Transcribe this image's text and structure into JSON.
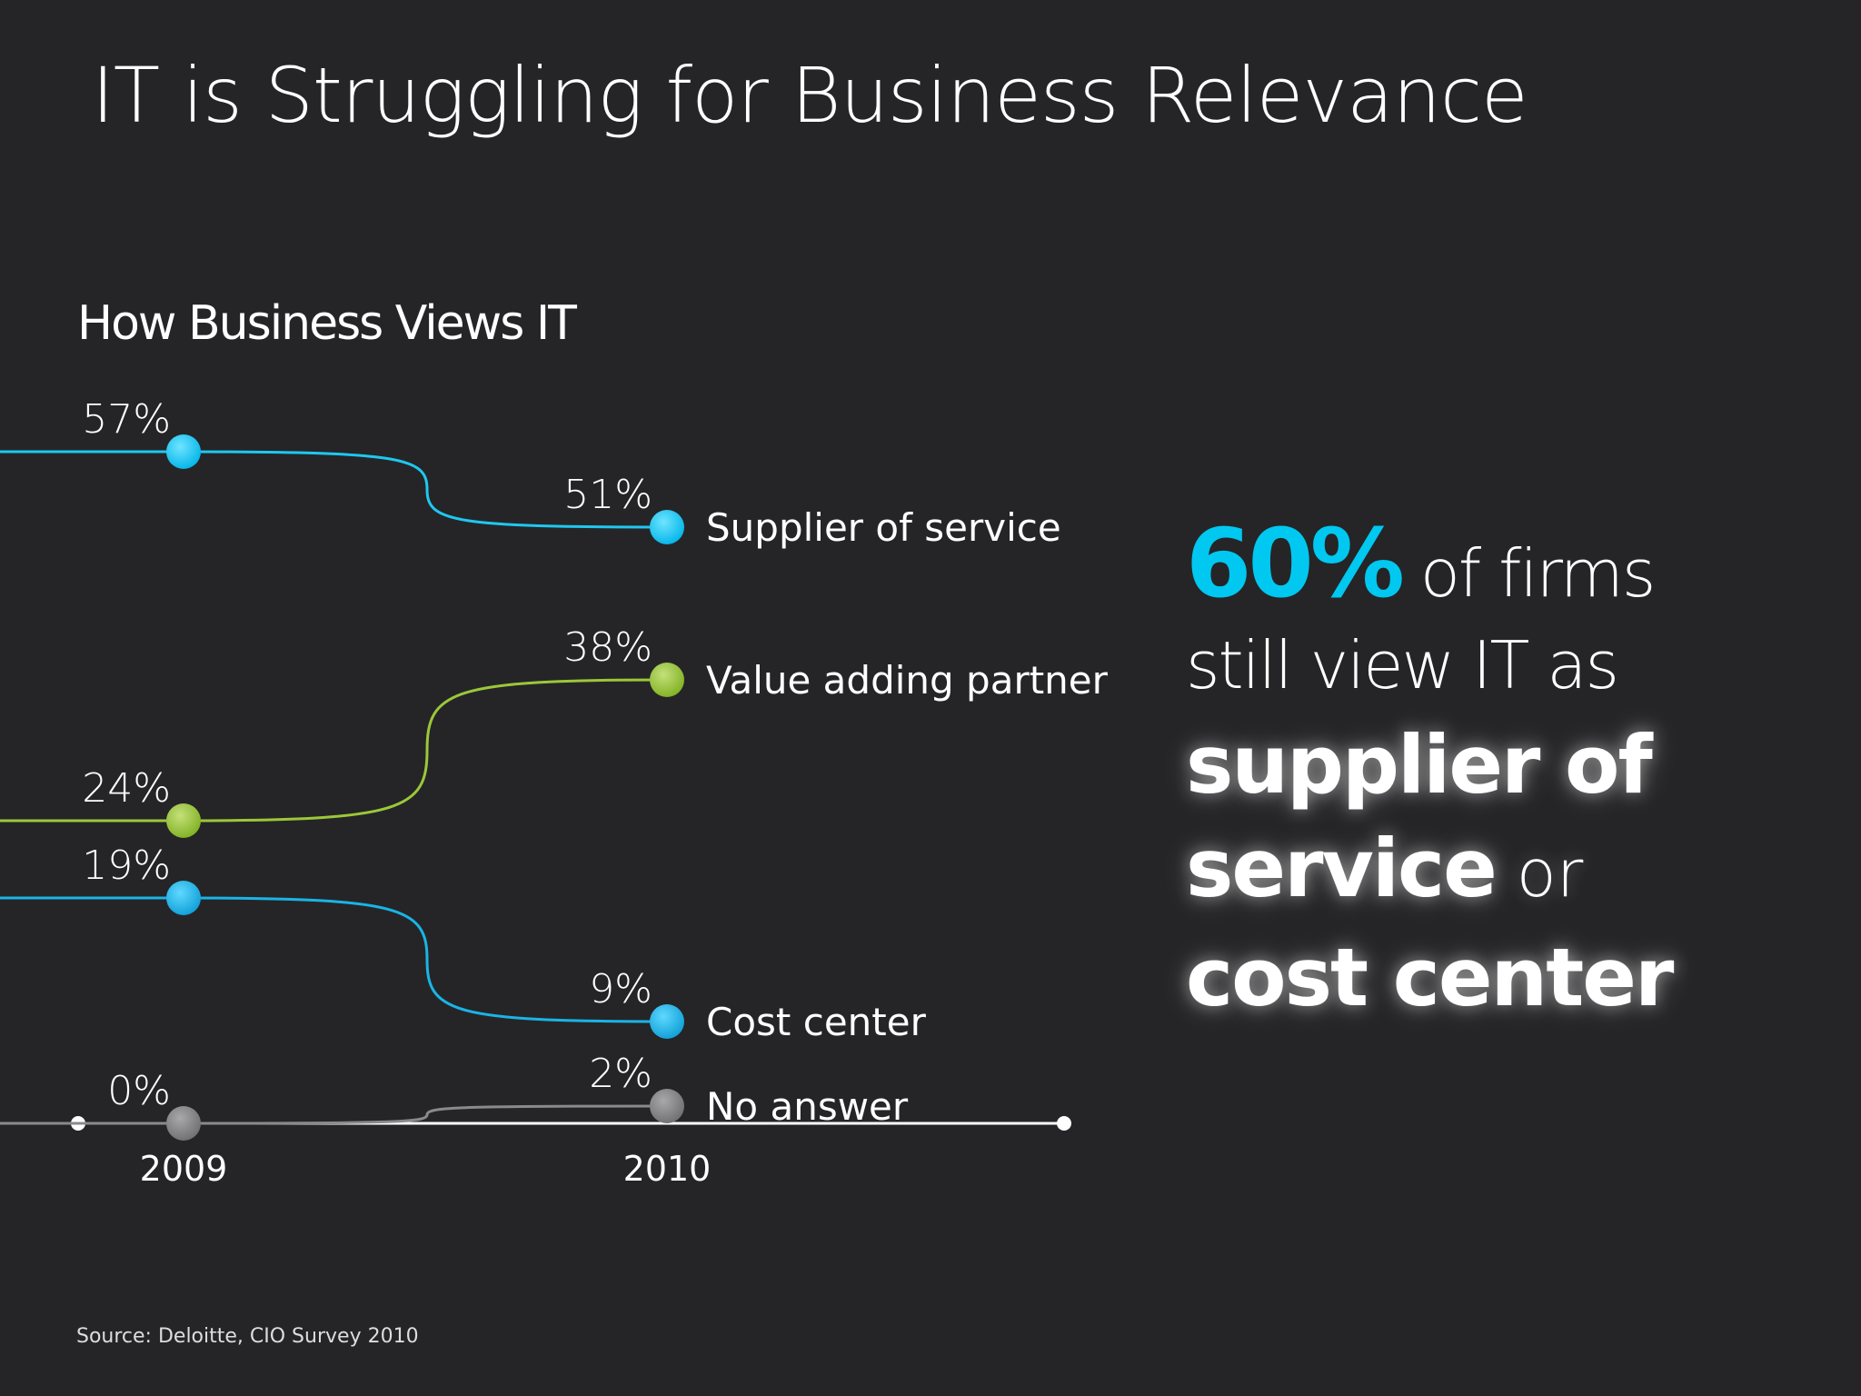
{
  "slide": {
    "title": "IT is Struggling for Business Relevance",
    "source": "Source: Deloitte, CIO Survey 2010"
  },
  "callout": {
    "highlight": "60%",
    "text_1": " of firms",
    "text_2": "still view IT as",
    "bold_1": "supplier of",
    "bold_2": "service",
    "text_3": " or",
    "bold_3": "cost center",
    "highlight_color": "#00c8f0"
  },
  "chart_data": {
    "type": "line",
    "title": "How Business Views IT",
    "x": [
      "2009",
      "2010"
    ],
    "series": [
      {
        "name": "Supplier of service",
        "values": [
          57,
          51
        ],
        "labels": [
          "57%",
          "51%"
        ],
        "color": "#1ec8f0"
      },
      {
        "name": "Value adding partner",
        "values": [
          24,
          38
        ],
        "labels": [
          "24%",
          "38%"
        ],
        "color": "#9cc73a"
      },
      {
        "name": "Cost center",
        "values": [
          19,
          9
        ],
        "labels": [
          "19%",
          "9%"
        ],
        "color": "#1ab4e6"
      },
      {
        "name": "No answer",
        "values": [
          0,
          2
        ],
        "labels": [
          "0%",
          "2%"
        ],
        "color": "#8a8a8c"
      }
    ],
    "xlabel": "",
    "ylabel": "",
    "grid": false,
    "legend": "right of 2010 points"
  }
}
